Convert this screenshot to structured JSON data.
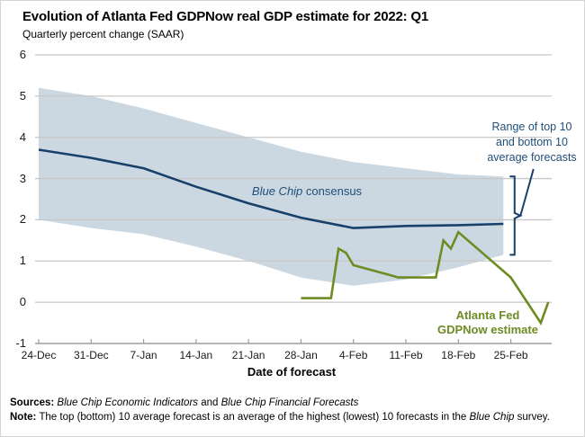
{
  "title": "Evolution of Atlanta Fed GDPNow real GDP estimate for 2022: Q1",
  "subtitle": "Quarterly percent change (SAAR)",
  "x_axis_label": "Date of forecast",
  "annotations": {
    "range_label_line1": "Range of top 10",
    "range_label_line2": "and bottom 10",
    "range_label_line3": "average forecasts",
    "consensus_label_italic": "Blue Chip",
    "consensus_label_rest": " consensus",
    "gdpnow_label_line1": "Atlanta Fed",
    "gdpnow_label_line2": "GDPNow estimate"
  },
  "footer": {
    "sources_label": "Sources:",
    "sources_italic1": "Blue Chip Economic Indicators",
    "sources_connector": " and ",
    "sources_italic2": "Blue Chip Financial Forecasts",
    "note_label": "Note:",
    "note_text_pre": " The top (bottom) 10 average forecast is an average of the highest (lowest) 10 forecasts in the ",
    "note_text_italic": "Blue Chip",
    "note_text_post": " survey."
  },
  "colors": {
    "band_fill": "#ccd8e1",
    "consensus_line": "#17406b",
    "blue_text": "#1f4e79",
    "gdpnow_line": "#6e8b23",
    "gdpnow_text": "#6e8b23",
    "gridline": "#c8c8c8",
    "axis": "#9d9d9d",
    "text": "#000000"
  },
  "chart_data": {
    "type": "line",
    "title": "Evolution of Atlanta Fed GDPNow real GDP estimate for 2022: Q1",
    "ylabel": "Quarterly percent change (SAAR)",
    "xlabel": "Date of forecast",
    "ylim": [
      -1,
      6
    ],
    "grid": true,
    "legend_position": "inline-annotations",
    "y_ticks": [
      6,
      5,
      4,
      3,
      2,
      1,
      0,
      -1
    ],
    "x_ticks": [
      {
        "label": "24-Dec",
        "day": 0
      },
      {
        "label": "31-Dec",
        "day": 7
      },
      {
        "label": "7-Jan",
        "day": 14
      },
      {
        "label": "14-Jan",
        "day": 21
      },
      {
        "label": "21-Jan",
        "day": 28
      },
      {
        "label": "28-Jan",
        "day": 35
      },
      {
        "label": "4-Feb",
        "day": 42
      },
      {
        "label": "11-Feb",
        "day": 49
      },
      {
        "label": "18-Feb",
        "day": 56
      },
      {
        "label": "25-Feb",
        "day": 63
      }
    ],
    "x_domain_days": [
      0,
      68.6
    ],
    "series": [
      {
        "name": "Blue Chip top 10 average forecast",
        "role": "band_top",
        "points": [
          {
            "date": "24-Dec",
            "day": 0,
            "value": 5.2
          },
          {
            "date": "31-Dec",
            "day": 7,
            "value": 5.0
          },
          {
            "date": "7-Jan",
            "day": 14,
            "value": 4.7
          },
          {
            "date": "14-Jan",
            "day": 21,
            "value": 4.35
          },
          {
            "date": "21-Jan",
            "day": 28,
            "value": 4.0
          },
          {
            "date": "28-Jan",
            "day": 35,
            "value": 3.65
          },
          {
            "date": "4-Feb",
            "day": 42,
            "value": 3.4
          },
          {
            "date": "11-Feb",
            "day": 49,
            "value": 3.25
          },
          {
            "date": "18-Feb",
            "day": 56,
            "value": 3.1
          },
          {
            "date": "24-Feb",
            "day": 62,
            "value": 3.05
          }
        ]
      },
      {
        "name": "Blue Chip bottom 10 average forecast",
        "role": "band_bottom",
        "points": [
          {
            "date": "24-Dec",
            "day": 0,
            "value": 2.0
          },
          {
            "date": "31-Dec",
            "day": 7,
            "value": 1.8
          },
          {
            "date": "7-Jan",
            "day": 14,
            "value": 1.65
          },
          {
            "date": "14-Jan",
            "day": 21,
            "value": 1.35
          },
          {
            "date": "21-Jan",
            "day": 28,
            "value": 1.0
          },
          {
            "date": "28-Jan",
            "day": 35,
            "value": 0.6
          },
          {
            "date": "4-Feb",
            "day": 42,
            "value": 0.4
          },
          {
            "date": "11-Feb",
            "day": 49,
            "value": 0.55
          },
          {
            "date": "18-Feb",
            "day": 56,
            "value": 0.85
          },
          {
            "date": "24-Feb",
            "day": 62,
            "value": 1.15
          }
        ]
      },
      {
        "name": "Blue Chip consensus",
        "role": "line",
        "points": [
          {
            "date": "24-Dec",
            "day": 0,
            "value": 3.7
          },
          {
            "date": "31-Dec",
            "day": 7,
            "value": 3.5
          },
          {
            "date": "7-Jan",
            "day": 14,
            "value": 3.25
          },
          {
            "date": "14-Jan",
            "day": 21,
            "value": 2.8
          },
          {
            "date": "21-Jan",
            "day": 28,
            "value": 2.4
          },
          {
            "date": "28-Jan",
            "day": 35,
            "value": 2.05
          },
          {
            "date": "4-Feb",
            "day": 42,
            "value": 1.8
          },
          {
            "date": "11-Feb",
            "day": 49,
            "value": 1.85
          },
          {
            "date": "18-Feb",
            "day": 56,
            "value": 1.87
          },
          {
            "date": "24-Feb",
            "day": 62,
            "value": 1.9
          }
        ]
      },
      {
        "name": "Atlanta Fed GDPNow estimate",
        "role": "line",
        "points": [
          {
            "date": "28-Jan",
            "day": 35,
            "value": 0.1
          },
          {
            "date": "1-Feb",
            "day": 39,
            "value": 0.1
          },
          {
            "date": "2-Feb",
            "day": 40,
            "value": 1.3
          },
          {
            "date": "3-Feb",
            "day": 41,
            "value": 1.2
          },
          {
            "date": "4-Feb",
            "day": 42,
            "value": 0.9
          },
          {
            "date": "9-Feb",
            "day": 47,
            "value": 0.65
          },
          {
            "date": "10-Feb",
            "day": 48,
            "value": 0.6
          },
          {
            "date": "15-Feb",
            "day": 53,
            "value": 0.6
          },
          {
            "date": "16-Feb",
            "day": 54,
            "value": 1.5
          },
          {
            "date": "17-Feb",
            "day": 55,
            "value": 1.3
          },
          {
            "date": "18-Feb",
            "day": 56,
            "value": 1.7
          },
          {
            "date": "25-Feb",
            "day": 63,
            "value": 0.6
          },
          {
            "date": "1-Mar",
            "day": 67,
            "value": -0.5
          },
          {
            "date": "2-Mar",
            "day": 68,
            "value": 0.0
          }
        ]
      }
    ]
  }
}
